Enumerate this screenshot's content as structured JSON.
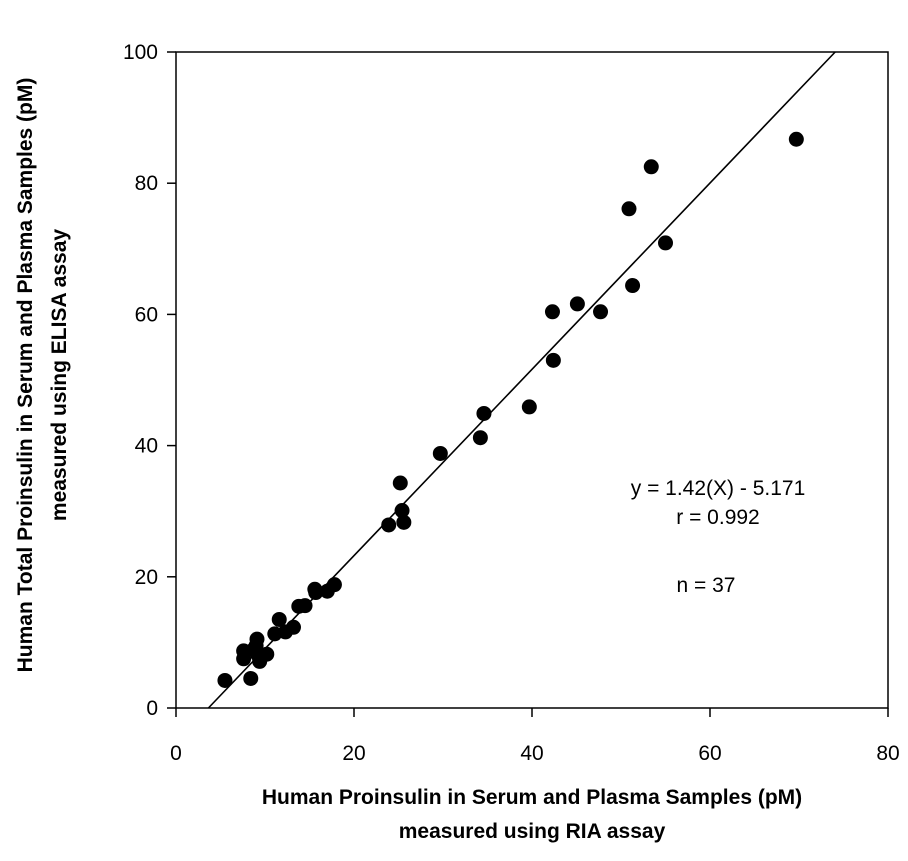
{
  "chart_data": {
    "type": "scatter",
    "xlabel": [
      "Human Proinsulin in Serum and Plasma Samples (pM)",
      "measured using RIA assay"
    ],
    "ylabel": [
      "Human Total Proinsulin in Serum and Plasma Samples (pM)",
      "measured using ELISA assay"
    ],
    "xlim": [
      0,
      80
    ],
    "ylim": [
      0,
      100
    ],
    "x_ticks": [
      0,
      20,
      40,
      60,
      80
    ],
    "y_ticks": [
      0,
      20,
      40,
      60,
      80,
      100
    ],
    "grid": false,
    "legend": "none",
    "marker_color": "#000000",
    "annotations": [
      "y = 1.42(X) - 5.171",
      "r = 0.992",
      "n = 37"
    ],
    "fit_line": {
      "slope": 1.42,
      "intercept": -5.171
    },
    "points": [
      [
        5.5,
        4.2
      ],
      [
        7.6,
        8.7
      ],
      [
        7.6,
        7.5
      ],
      [
        8.4,
        4.5
      ],
      [
        8.7,
        8.9
      ],
      [
        9.0,
        9.5
      ],
      [
        9.1,
        10.5
      ],
      [
        9.2,
        8.1
      ],
      [
        9.4,
        7.1
      ],
      [
        10.2,
        8.2
      ],
      [
        11.1,
        11.3
      ],
      [
        11.6,
        13.5
      ],
      [
        12.3,
        11.6
      ],
      [
        13.2,
        12.3
      ],
      [
        13.8,
        15.5
      ],
      [
        14.5,
        15.6
      ],
      [
        15.6,
        18.1
      ],
      [
        15.7,
        17.6
      ],
      [
        17.0,
        17.8
      ],
      [
        17.8,
        18.8
      ],
      [
        23.9,
        27.9
      ],
      [
        25.2,
        34.3
      ],
      [
        25.4,
        30.1
      ],
      [
        25.6,
        28.3
      ],
      [
        29.7,
        38.8
      ],
      [
        34.2,
        41.2
      ],
      [
        34.6,
        44.9
      ],
      [
        39.7,
        45.9
      ],
      [
        42.3,
        60.4
      ],
      [
        42.4,
        53.0
      ],
      [
        45.1,
        61.6
      ],
      [
        47.7,
        60.4
      ],
      [
        50.9,
        76.1
      ],
      [
        51.3,
        64.4
      ],
      [
        53.4,
        82.5
      ],
      [
        55.0,
        70.9
      ],
      [
        69.7,
        86.7
      ]
    ]
  }
}
